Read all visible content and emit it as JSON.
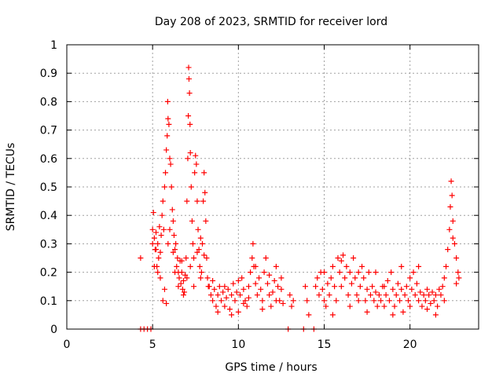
{
  "chart_data": {
    "type": "scatter",
    "title": "Day 208 of 2023, SRMTID for receiver lord",
    "xlabel": "GPS time / hours",
    "ylabel": "SRMTID / TECUs",
    "xlim": [
      0,
      24
    ],
    "ylim": [
      0,
      1
    ],
    "xticks": [
      0,
      5,
      10,
      15,
      20
    ],
    "yticks": [
      0,
      0.1,
      0.2,
      0.3,
      0.4,
      0.5,
      0.6,
      0.7,
      0.8,
      0.9,
      1
    ],
    "xtick_labels": [
      "0",
      "5",
      "10",
      "15",
      "20"
    ],
    "ytick_labels": [
      "0",
      "0.1",
      "0.2",
      "0.3",
      "0.4",
      "0.5",
      "0.6",
      "0.7",
      "0.8",
      "0.9",
      "1"
    ],
    "grid": true,
    "marker": "+",
    "series": [
      {
        "name": "SRMTID",
        "color": "#ff0000",
        "points": [
          [
            4.3,
            0.25
          ],
          [
            4.3,
            0.0
          ],
          [
            4.5,
            0.0
          ],
          [
            4.7,
            0.0
          ],
          [
            4.9,
            0.0
          ],
          [
            5.0,
            0.35
          ],
          [
            5.0,
            0.3
          ],
          [
            5.05,
            0.41
          ],
          [
            5.1,
            0.32
          ],
          [
            5.15,
            0.28
          ],
          [
            5.2,
            0.34
          ],
          [
            5.25,
            0.22
          ],
          [
            5.3,
            0.3
          ],
          [
            5.35,
            0.25
          ],
          [
            5.4,
            0.36
          ],
          [
            5.45,
            0.27
          ],
          [
            5.5,
            0.33
          ],
          [
            5.55,
            0.4
          ],
          [
            5.6,
            0.45
          ],
          [
            5.65,
            0.35
          ],
          [
            5.7,
            0.5
          ],
          [
            5.75,
            0.55
          ],
          [
            5.8,
            0.63
          ],
          [
            5.85,
            0.68
          ],
          [
            5.88,
            0.8
          ],
          [
            5.9,
            0.74
          ],
          [
            5.95,
            0.72
          ],
          [
            6.0,
            0.6
          ],
          [
            6.05,
            0.58
          ],
          [
            6.1,
            0.5
          ],
          [
            6.15,
            0.42
          ],
          [
            6.2,
            0.38
          ],
          [
            6.25,
            0.33
          ],
          [
            6.3,
            0.28
          ],
          [
            6.35,
            0.3
          ],
          [
            6.4,
            0.22
          ],
          [
            6.45,
            0.25
          ],
          [
            6.5,
            0.2
          ],
          [
            6.55,
            0.18
          ],
          [
            6.6,
            0.24
          ],
          [
            6.65,
            0.16
          ],
          [
            6.7,
            0.2
          ],
          [
            6.75,
            0.14
          ],
          [
            6.8,
            0.17
          ],
          [
            6.85,
            0.13
          ],
          [
            6.9,
            0.19
          ],
          [
            6.95,
            0.25
          ],
          [
            7.0,
            0.45
          ],
          [
            7.05,
            0.6
          ],
          [
            7.08,
            0.75
          ],
          [
            7.1,
            0.92
          ],
          [
            7.12,
            0.88
          ],
          [
            7.15,
            0.83
          ],
          [
            7.18,
            0.72
          ],
          [
            7.2,
            0.62
          ],
          [
            7.25,
            0.5
          ],
          [
            7.3,
            0.38
          ],
          [
            7.35,
            0.3
          ],
          [
            7.4,
            0.25
          ],
          [
            7.45,
            0.55
          ],
          [
            7.5,
            0.61
          ],
          [
            7.55,
            0.58
          ],
          [
            7.6,
            0.45
          ],
          [
            7.65,
            0.35
          ],
          [
            7.7,
            0.28
          ],
          [
            7.75,
            0.22
          ],
          [
            7.8,
            0.18
          ],
          [
            7.85,
            0.2
          ],
          [
            7.9,
            0.3
          ],
          [
            7.95,
            0.45
          ],
          [
            8.0,
            0.55
          ],
          [
            8.05,
            0.48
          ],
          [
            8.1,
            0.38
          ],
          [
            8.15,
            0.25
          ],
          [
            8.2,
            0.18
          ],
          [
            8.25,
            0.15
          ],
          [
            5.1,
            0.22
          ],
          [
            5.2,
            0.28
          ],
          [
            5.3,
            0.2
          ],
          [
            5.45,
            0.18
          ],
          [
            5.6,
            0.1
          ],
          [
            5.7,
            0.14
          ],
          [
            5.8,
            0.09
          ],
          [
            5.9,
            0.3
          ],
          [
            6.0,
            0.35
          ],
          [
            6.2,
            0.27
          ],
          [
            6.3,
            0.2
          ],
          [
            6.5,
            0.15
          ],
          [
            6.7,
            0.24
          ],
          [
            6.8,
            0.12
          ],
          [
            7.0,
            0.18
          ],
          [
            7.2,
            0.22
          ],
          [
            7.4,
            0.15
          ],
          [
            7.6,
            0.27
          ],
          [
            7.8,
            0.32
          ],
          [
            8.0,
            0.26
          ],
          [
            8.3,
            0.15
          ],
          [
            8.4,
            0.12
          ],
          [
            8.5,
            0.1
          ],
          [
            8.6,
            0.14
          ],
          [
            8.7,
            0.08
          ],
          [
            8.8,
            0.12
          ],
          [
            8.9,
            0.15
          ],
          [
            9.0,
            0.1
          ],
          [
            9.1,
            0.13
          ],
          [
            9.2,
            0.08
          ],
          [
            9.3,
            0.11
          ],
          [
            9.4,
            0.14
          ],
          [
            9.5,
            0.07
          ],
          [
            9.6,
            0.12
          ],
          [
            9.7,
            0.16
          ],
          [
            9.8,
            0.1
          ],
          [
            9.9,
            0.13
          ],
          [
            10.0,
            0.06
          ],
          [
            10.1,
            0.12
          ],
          [
            10.2,
            0.18
          ],
          [
            10.3,
            0.14
          ],
          [
            10.4,
            0.1
          ],
          [
            10.5,
            0.08
          ],
          [
            10.6,
            0.15
          ],
          [
            10.7,
            0.2
          ],
          [
            10.8,
            0.25
          ],
          [
            10.85,
            0.3
          ],
          [
            10.9,
            0.22
          ],
          [
            11.0,
            0.16
          ],
          [
            11.1,
            0.12
          ],
          [
            11.2,
            0.18
          ],
          [
            11.3,
            0.14
          ],
          [
            11.4,
            0.1
          ],
          [
            11.5,
            0.2
          ],
          [
            11.6,
            0.25
          ],
          [
            11.7,
            0.16
          ],
          [
            11.8,
            0.12
          ],
          [
            11.9,
            0.08
          ],
          [
            12.0,
            0.13
          ],
          [
            12.1,
            0.17
          ],
          [
            12.2,
            0.22
          ],
          [
            12.3,
            0.15
          ],
          [
            12.4,
            0.1
          ],
          [
            12.5,
            0.14
          ],
          [
            12.6,
            0.09
          ],
          [
            8.5,
            0.17
          ],
          [
            8.8,
            0.06
          ],
          [
            9.2,
            0.15
          ],
          [
            9.6,
            0.05
          ],
          [
            10.0,
            0.17
          ],
          [
            10.3,
            0.09
          ],
          [
            10.6,
            0.11
          ],
          [
            11.0,
            0.22
          ],
          [
            11.4,
            0.07
          ],
          [
            11.8,
            0.19
          ],
          [
            12.2,
            0.1
          ],
          [
            12.5,
            0.18
          ],
          [
            12.9,
            0.0
          ],
          [
            13.0,
            0.12
          ],
          [
            13.1,
            0.08
          ],
          [
            13.2,
            0.1
          ],
          [
            13.8,
            0.0
          ],
          [
            13.9,
            0.15
          ],
          [
            14.0,
            0.1
          ],
          [
            14.1,
            0.05
          ],
          [
            14.4,
            0.0
          ],
          [
            14.5,
            0.15
          ],
          [
            14.6,
            0.18
          ],
          [
            14.7,
            0.12
          ],
          [
            14.8,
            0.2
          ],
          [
            14.9,
            0.14
          ],
          [
            15.0,
            0.1
          ],
          [
            15.1,
            0.08
          ],
          [
            15.2,
            0.16
          ],
          [
            15.3,
            0.12
          ],
          [
            15.4,
            0.18
          ],
          [
            15.5,
            0.22
          ],
          [
            15.6,
            0.15
          ],
          [
            15.7,
            0.1
          ],
          [
            15.8,
            0.25
          ],
          [
            15.9,
            0.2
          ],
          [
            16.0,
            0.15
          ],
          [
            16.1,
            0.26
          ],
          [
            16.2,
            0.18
          ],
          [
            16.3,
            0.22
          ],
          [
            16.4,
            0.12
          ],
          [
            16.5,
            0.2
          ],
          [
            16.6,
            0.16
          ],
          [
            16.7,
            0.25
          ],
          [
            16.8,
            0.18
          ],
          [
            16.9,
            0.12
          ],
          [
            17.0,
            0.2
          ],
          [
            17.1,
            0.15
          ],
          [
            17.2,
            0.22
          ],
          [
            17.3,
            0.18
          ],
          [
            17.4,
            0.1
          ],
          [
            17.5,
            0.14
          ],
          [
            17.6,
            0.2
          ],
          [
            17.7,
            0.12
          ],
          [
            17.8,
            0.15
          ],
          [
            17.9,
            0.1
          ],
          [
            18.0,
            0.13
          ],
          [
            18.1,
            0.08
          ],
          [
            18.2,
            0.12
          ],
          [
            18.3,
            0.1
          ],
          [
            18.4,
            0.15
          ],
          [
            18.5,
            0.08
          ],
          [
            18.6,
            0.12
          ],
          [
            18.7,
            0.17
          ],
          [
            18.8,
            0.1
          ],
          [
            18.9,
            0.2
          ],
          [
            19.0,
            0.14
          ],
          [
            19.1,
            0.08
          ],
          [
            19.2,
            0.12
          ],
          [
            19.3,
            0.16
          ],
          [
            19.4,
            0.1
          ],
          [
            19.5,
            0.14
          ],
          [
            19.6,
            0.06
          ],
          [
            19.7,
            0.12
          ],
          [
            19.8,
            0.15
          ],
          [
            19.9,
            0.1
          ],
          [
            20.0,
            0.18
          ],
          [
            20.1,
            0.14
          ],
          [
            20.2,
            0.2
          ],
          [
            20.3,
            0.12
          ],
          [
            20.4,
            0.16
          ],
          [
            20.5,
            0.1
          ],
          [
            20.6,
            0.13
          ],
          [
            20.7,
            0.08
          ],
          [
            20.8,
            0.12
          ],
          [
            20.9,
            0.1
          ],
          [
            21.0,
            0.07
          ],
          [
            21.1,
            0.12
          ],
          [
            21.2,
            0.09
          ],
          [
            21.3,
            0.13
          ],
          [
            21.4,
            0.1
          ],
          [
            21.5,
            0.12
          ],
          [
            21.6,
            0.08
          ],
          [
            21.7,
            0.14
          ],
          [
            21.8,
            0.12
          ],
          [
            21.9,
            0.15
          ],
          [
            22.0,
            0.18
          ],
          [
            22.1,
            0.22
          ],
          [
            22.2,
            0.28
          ],
          [
            22.3,
            0.35
          ],
          [
            22.35,
            0.43
          ],
          [
            22.4,
            0.52
          ],
          [
            22.45,
            0.47
          ],
          [
            22.5,
            0.38
          ],
          [
            22.6,
            0.3
          ],
          [
            22.7,
            0.25
          ],
          [
            22.8,
            0.2
          ],
          [
            22.85,
            0.18
          ],
          [
            15.0,
            0.2
          ],
          [
            15.5,
            0.05
          ],
          [
            16.0,
            0.24
          ],
          [
            16.5,
            0.08
          ],
          [
            17.0,
            0.1
          ],
          [
            17.5,
            0.06
          ],
          [
            18.0,
            0.2
          ],
          [
            18.5,
            0.15
          ],
          [
            19.0,
            0.05
          ],
          [
            19.5,
            0.22
          ],
          [
            20.0,
            0.08
          ],
          [
            20.5,
            0.22
          ],
          [
            21.0,
            0.14
          ],
          [
            21.5,
            0.05
          ],
          [
            22.0,
            0.1
          ],
          [
            22.5,
            0.32
          ],
          [
            22.7,
            0.16
          ]
        ]
      }
    ]
  }
}
